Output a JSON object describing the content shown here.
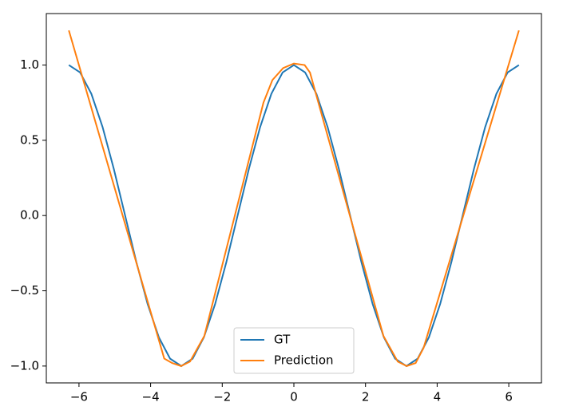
{
  "chart_data": {
    "type": "line",
    "xlim": [
      -6.912,
      6.912
    ],
    "ylim": [
      -1.112,
      1.342
    ],
    "xticks": [
      {
        "value": -6,
        "label": "−6"
      },
      {
        "value": -4,
        "label": "−4"
      },
      {
        "value": -2,
        "label": "−2"
      },
      0,
      2,
      4,
      6
    ],
    "yticks": [
      {
        "value": -1.0,
        "label": "−1.0"
      },
      {
        "value": -0.5,
        "label": "−0.5"
      },
      {
        "value": 0.0,
        "label": "0.0"
      },
      {
        "value": 0.5,
        "label": "0.5"
      },
      {
        "value": 1.0,
        "label": "1.0"
      }
    ],
    "legend": "lower center",
    "series": [
      {
        "name": "GT",
        "color": "#1f77b4",
        "x": [
          -6.283,
          -5.969,
          -5.655,
          -5.341,
          -5.027,
          -4.712,
          -4.398,
          -4.084,
          -3.77,
          -3.456,
          -3.142,
          -2.827,
          -2.513,
          -2.199,
          -1.885,
          -1.571,
          -1.257,
          -0.942,
          -0.628,
          -0.314,
          0,
          0.314,
          0.628,
          0.942,
          1.257,
          1.571,
          1.885,
          2.199,
          2.513,
          2.827,
          3.142,
          3.456,
          3.77,
          4.084,
          4.398,
          4.712,
          5.027,
          5.341,
          5.655,
          5.969,
          6.283
        ],
        "values": [
          1,
          0.951,
          0.809,
          0.588,
          0.309,
          0,
          -0.309,
          -0.588,
          -0.809,
          -0.951,
          -1,
          -0.951,
          -0.809,
          -0.588,
          -0.309,
          0,
          0.309,
          0.588,
          0.809,
          0.951,
          1,
          0.951,
          0.809,
          0.588,
          0.309,
          0,
          -0.309,
          -0.588,
          -0.809,
          -0.951,
          -1,
          -0.951,
          -0.809,
          -0.588,
          -0.309,
          0,
          0.309,
          0.588,
          0.809,
          0.951,
          1
        ]
      },
      {
        "name": "Prediction",
        "color": "#ff7f0e",
        "x": [
          -6.283,
          -3.62,
          -3.4,
          -3.15,
          -2.9,
          -2.5,
          -0.85,
          -0.6,
          -0.3,
          0,
          0.3,
          0.45,
          2.5,
          2.9,
          3.15,
          3.4,
          3.62,
          6.283
        ],
        "values": [
          1.23,
          -0.95,
          -0.98,
          -1.0,
          -0.97,
          -0.8,
          0.75,
          0.9,
          0.98,
          1.01,
          1.0,
          0.95,
          -0.8,
          -0.97,
          -1.0,
          -0.98,
          -0.88,
          1.23
        ]
      }
    ]
  }
}
